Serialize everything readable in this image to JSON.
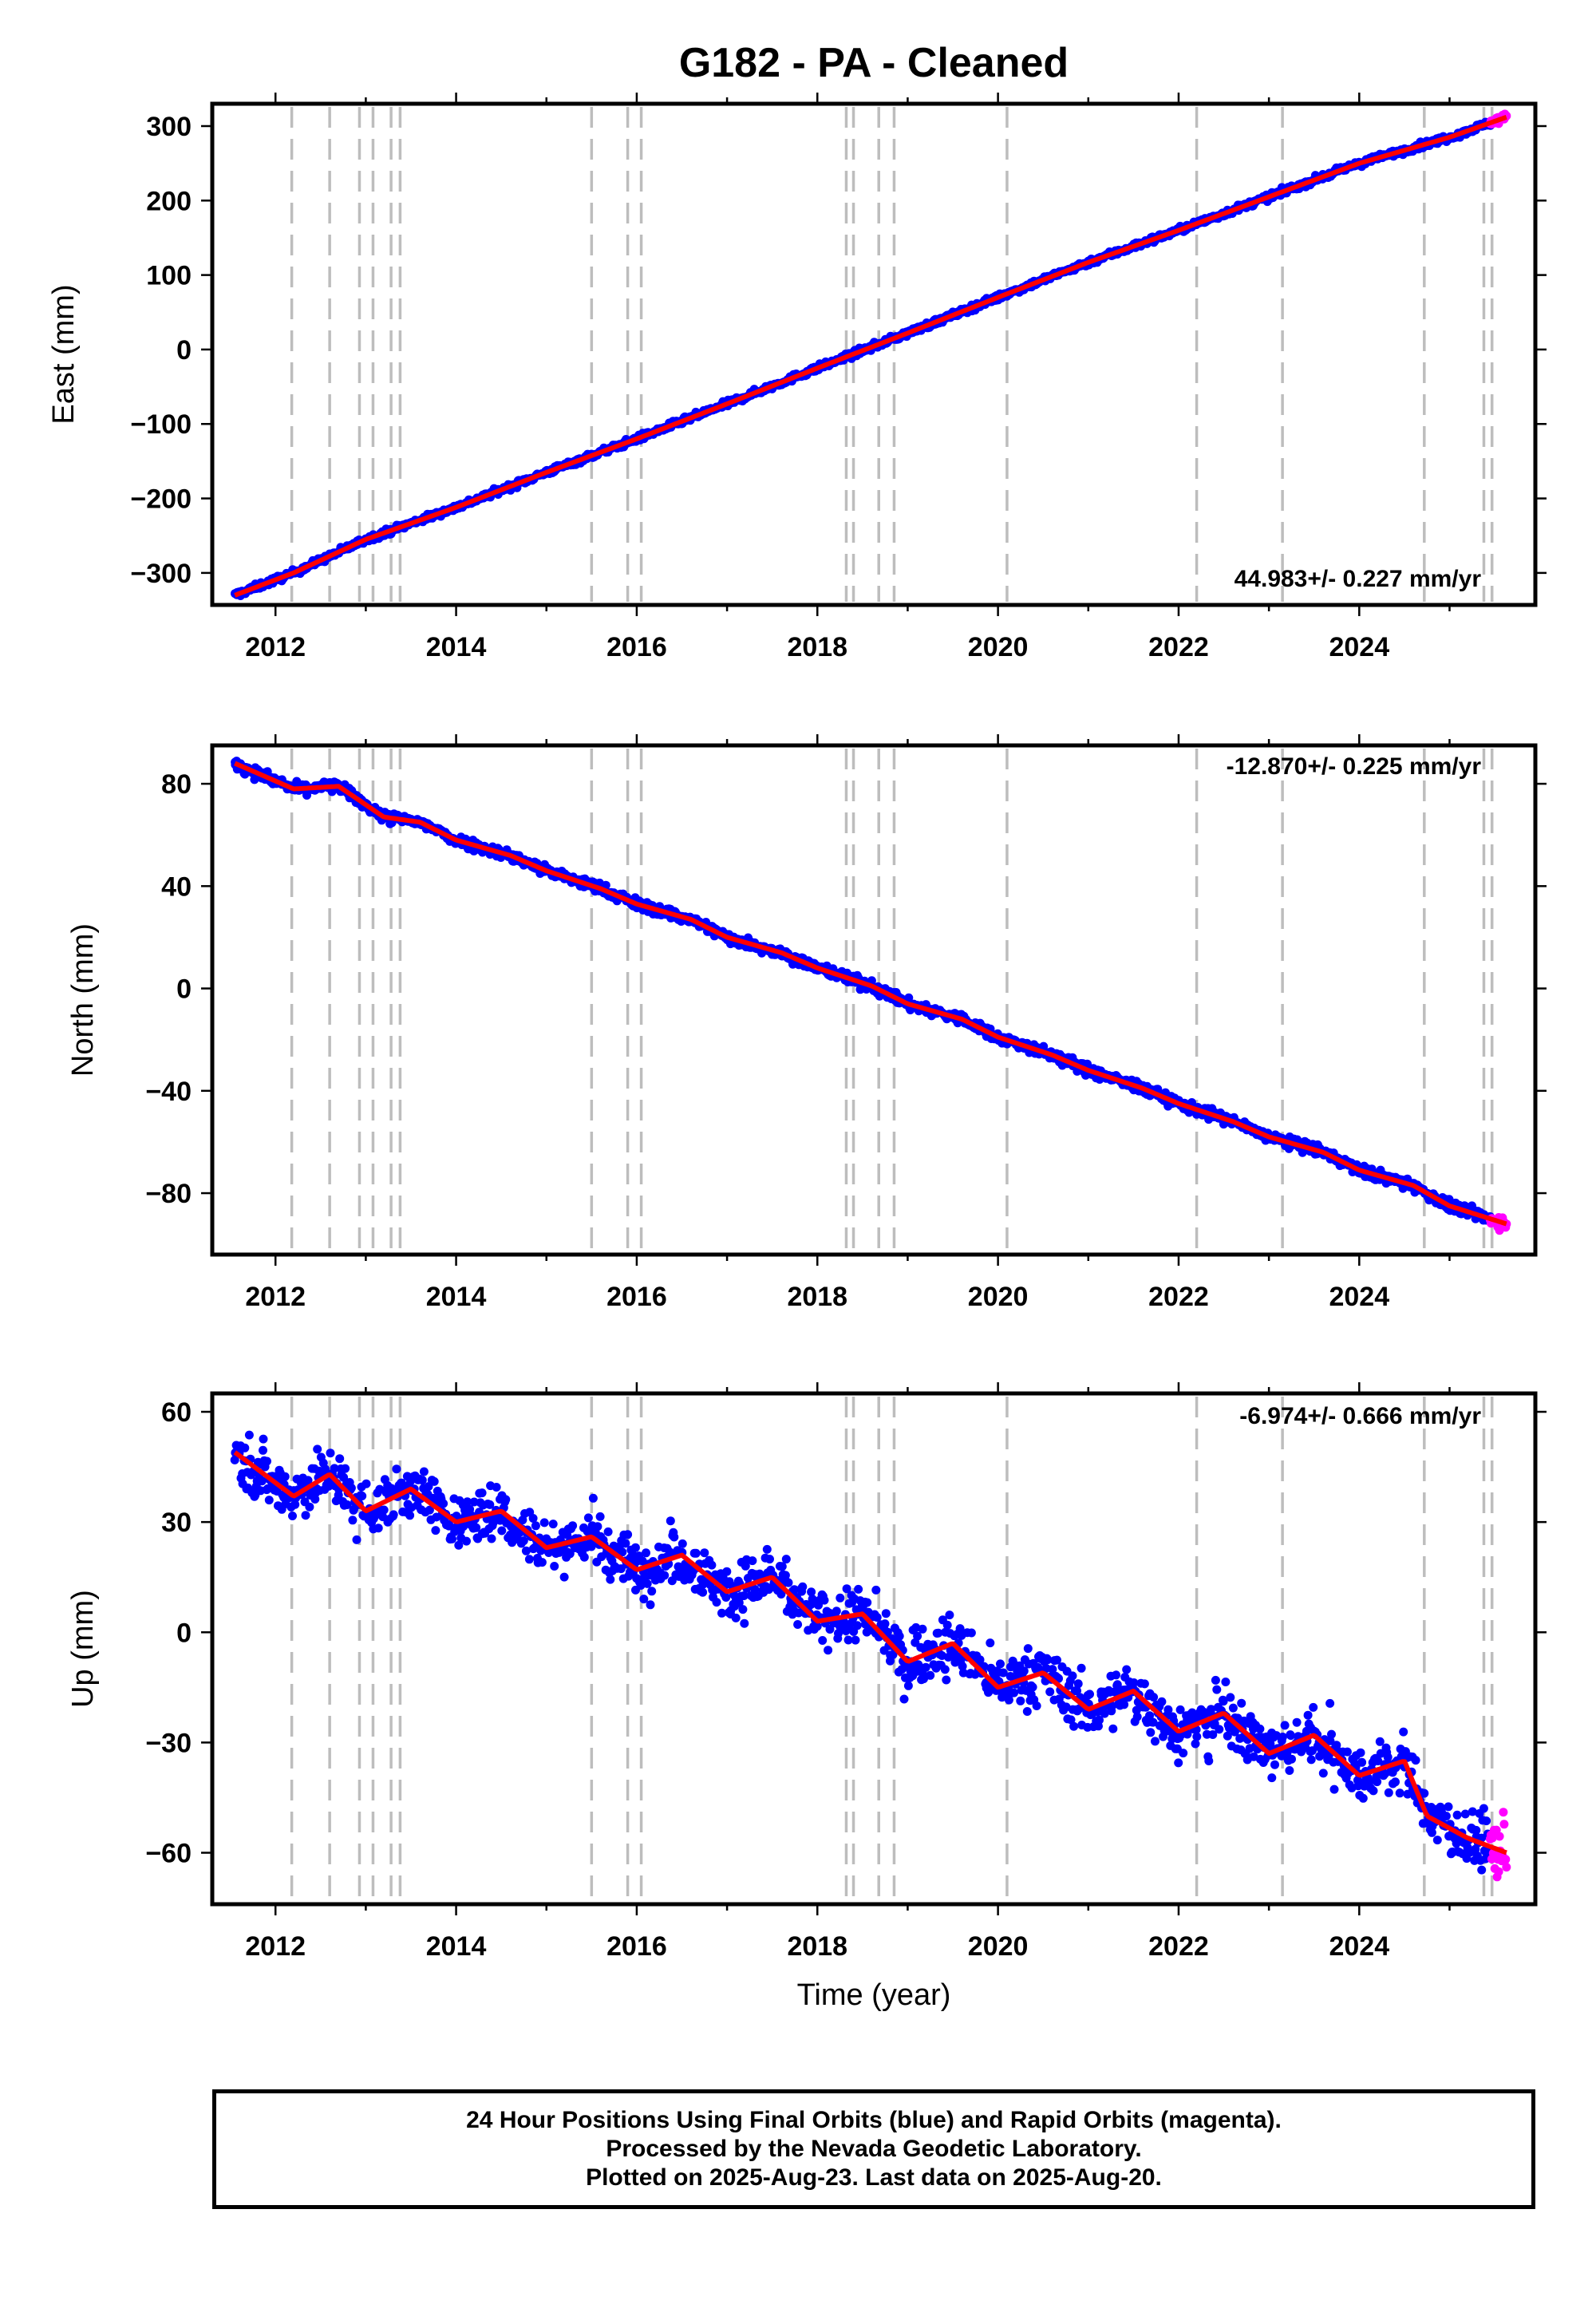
{
  "chart_data": [
    {
      "type": "scatter",
      "title": "G182  - PA - Cleaned",
      "xlabel": "",
      "ylabel": "East (mm)",
      "xlim": [
        2011.3,
        2025.95
      ],
      "ylim": [
        -343,
        330
      ],
      "x_ticks": [
        2012,
        2014,
        2016,
        2018,
        2020,
        2022,
        2024
      ],
      "x_tick_labels": [
        "2012",
        "2014",
        "2016",
        "2018",
        "2020",
        "2022",
        "2024"
      ],
      "y_ticks": [
        -300,
        -200,
        -100,
        0,
        100,
        200,
        300
      ],
      "y_tick_labels": [
        "−300",
        "−200",
        "−100",
        "0",
        "100",
        "200",
        "300"
      ],
      "rate_label": "44.983+/- 0.227 mm/yr",
      "series": [
        {
          "color": "#0000ff",
          "points": "daily final-orbit positions",
          "start": [
            2011.55,
            -330
          ],
          "end": [
            2025.45,
            303
          ],
          "scatter_mm": 3
        },
        {
          "color": "#ff00ff",
          "points": "rapid-orbit positions",
          "start": [
            2025.45,
            303
          ],
          "end": [
            2025.63,
            312
          ]
        },
        {
          "color": "#ff0000",
          "points": "model fit",
          "x": [
            2011.55,
            2012.2,
            2013.0,
            2014.0,
            2015.0,
            2016.0,
            2017.0,
            2018.0,
            2019.0,
            2020.0,
            2021.0,
            2022.0,
            2023.0,
            2024.0,
            2025.0,
            2025.63
          ],
          "y": [
            -330,
            -300,
            -255,
            -212,
            -165,
            -120,
            -73,
            -25,
            22,
            70,
            117,
            160,
            205,
            250,
            285,
            312
          ]
        }
      ]
    },
    {
      "type": "scatter",
      "xlabel": "",
      "ylabel": "North (mm)",
      "xlim": [
        2011.3,
        2025.95
      ],
      "ylim": [
        -104,
        95
      ],
      "x_ticks": [
        2012,
        2014,
        2016,
        2018,
        2020,
        2022,
        2024
      ],
      "x_tick_labels": [
        "2012",
        "2014",
        "2016",
        "2018",
        "2020",
        "2022",
        "2024"
      ],
      "y_ticks": [
        -80,
        -40,
        0,
        40,
        80
      ],
      "y_tick_labels": [
        "−80",
        "−40",
        "0",
        "40",
        "80"
      ],
      "rate_label": "-12.870+/- 0.225 mm/yr",
      "series": [
        {
          "color": "#0000ff",
          "points": "daily final-orbit positions",
          "scatter_mm": 1.5
        },
        {
          "color": "#ff00ff",
          "points": "rapid-orbit positions",
          "x": [
            2025.45,
            2025.63
          ],
          "y": [
            -92,
            -93
          ]
        },
        {
          "color": "#ff0000",
          "points": "model fit",
          "x": [
            2011.55,
            2012.2,
            2012.7,
            2013.2,
            2013.6,
            2014.0,
            2014.6,
            2015.0,
            2015.6,
            2016.0,
            2016.6,
            2017.0,
            2017.6,
            2018.0,
            2018.6,
            2019.0,
            2019.6,
            2020.0,
            2020.6,
            2021.0,
            2021.6,
            2022.0,
            2022.6,
            2023.0,
            2023.6,
            2024.0,
            2024.6,
            2025.0,
            2025.63
          ],
          "y": [
            88,
            78,
            79,
            67,
            65,
            58,
            52,
            46,
            39,
            33,
            27,
            20,
            14,
            8,
            1,
            -6,
            -12,
            -19,
            -26,
            -32,
            -39,
            -45,
            -52,
            -58,
            -64,
            -71,
            -77,
            -85,
            -92
          ]
        }
      ]
    },
    {
      "type": "scatter",
      "xlabel": "Time (year)",
      "ylabel": "Up (mm)",
      "xlim": [
        2011.3,
        2025.95
      ],
      "ylim": [
        -74,
        65
      ],
      "x_ticks": [
        2012,
        2014,
        2016,
        2018,
        2020,
        2022,
        2024
      ],
      "x_tick_labels": [
        "2012",
        "2014",
        "2016",
        "2018",
        "2020",
        "2022",
        "2024"
      ],
      "y_ticks": [
        -60,
        -30,
        0,
        30,
        60
      ],
      "y_tick_labels": [
        "−60",
        "−30",
        "0",
        "30",
        "60"
      ],
      "rate_label": "-6.974+/- 0.666 mm/yr",
      "series": [
        {
          "color": "#0000ff",
          "points": "daily final-orbit positions",
          "scatter_mm": 5
        },
        {
          "color": "#ff00ff",
          "points": "rapid-orbit positions",
          "x": [
            2025.45,
            2025.63
          ],
          "y": [
            -57,
            -62
          ]
        },
        {
          "color": "#ff0000",
          "points": "model fit",
          "x": [
            2011.55,
            2012.2,
            2012.6,
            2013.0,
            2013.5,
            2014.0,
            2014.5,
            2015.0,
            2015.5,
            2016.0,
            2016.5,
            2017.0,
            2017.5,
            2018.0,
            2018.5,
            2019.0,
            2019.5,
            2020.0,
            2020.5,
            2021.0,
            2021.5,
            2022.0,
            2022.5,
            2023.0,
            2023.5,
            2024.0,
            2024.5,
            2024.75,
            2025.2,
            2025.63
          ],
          "y": [
            49,
            37,
            43,
            33,
            39,
            30,
            33,
            23,
            26,
            17,
            21,
            11,
            15,
            3,
            5,
            -8,
            -3,
            -15,
            -11,
            -21,
            -16,
            -27,
            -22,
            -33,
            -28,
            -39,
            -35,
            -50,
            -56,
            -60
          ]
        }
      ]
    }
  ],
  "event_years": [
    2012.18,
    2012.6,
    2012.93,
    2013.08,
    2013.28,
    2013.38,
    2015.5,
    2015.9,
    2016.05,
    2018.32,
    2018.4,
    2018.68,
    2018.85,
    2020.1,
    2022.2,
    2023.15,
    2024.72,
    2025.38,
    2025.47
  ],
  "footer": {
    "line1": "24 Hour Positions Using Final Orbits (blue) and Rapid Orbits (magenta).",
    "line2": "Processed by the Nevada Geodetic Laboratory.",
    "line3": "Plotted on 2025-Aug-23. Last data on 2025-Aug-20."
  }
}
